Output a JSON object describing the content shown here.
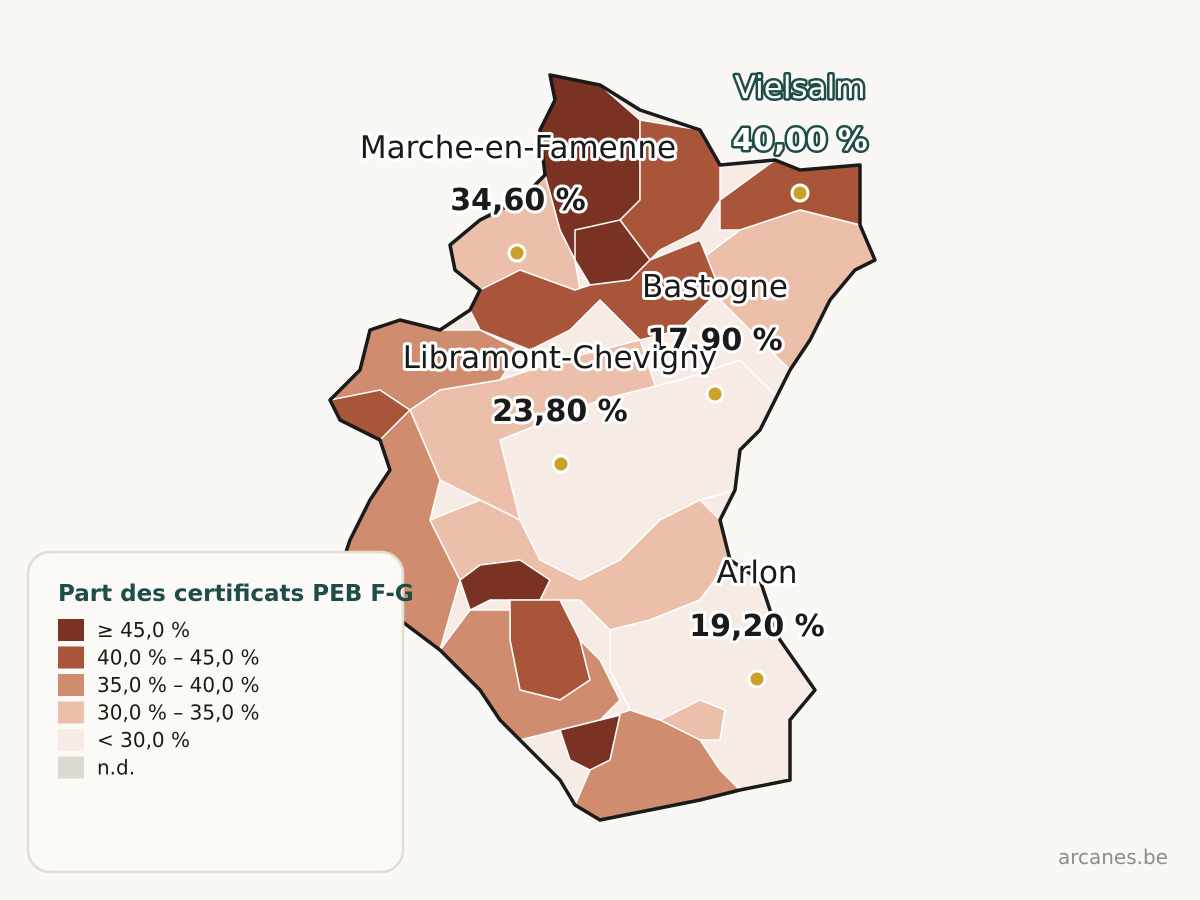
{
  "cities": [
    {
      "name": "Marche-en-Famenne",
      "value": 34.6,
      "label": "34,60 %"
    },
    {
      "name": "Vielsalm",
      "value": 40.0,
      "label": "40,00 %"
    },
    {
      "name": "Bastogne",
      "value": 17.9,
      "label": "17,90 %"
    },
    {
      "name": "Libramont-Chevigny",
      "value": 23.8,
      "label": "23,80 %"
    },
    {
      "name": "Arlon",
      "value": 19.2,
      "label": "19,20 %"
    }
  ],
  "legend": {
    "title": "Part des certificats PEB F-G",
    "items": [
      {
        "label": "≥ 45,0 %",
        "color": "#7a3322"
      },
      {
        "label": "40,0 % – 45,0 %",
        "color": "#a9553a"
      },
      {
        "label": "35,0 % – 40,0 %",
        "color": "#d08c6e"
      },
      {
        "label": "30,0 % – 35,0 %",
        "color": "#ebbfaa"
      },
      {
        "label": "< 30,0 %",
        "color": "#f7ebe6"
      },
      {
        "label": "n.d.",
        "color": "#dcdad0"
      }
    ]
  },
  "source": "arcanes.be"
}
